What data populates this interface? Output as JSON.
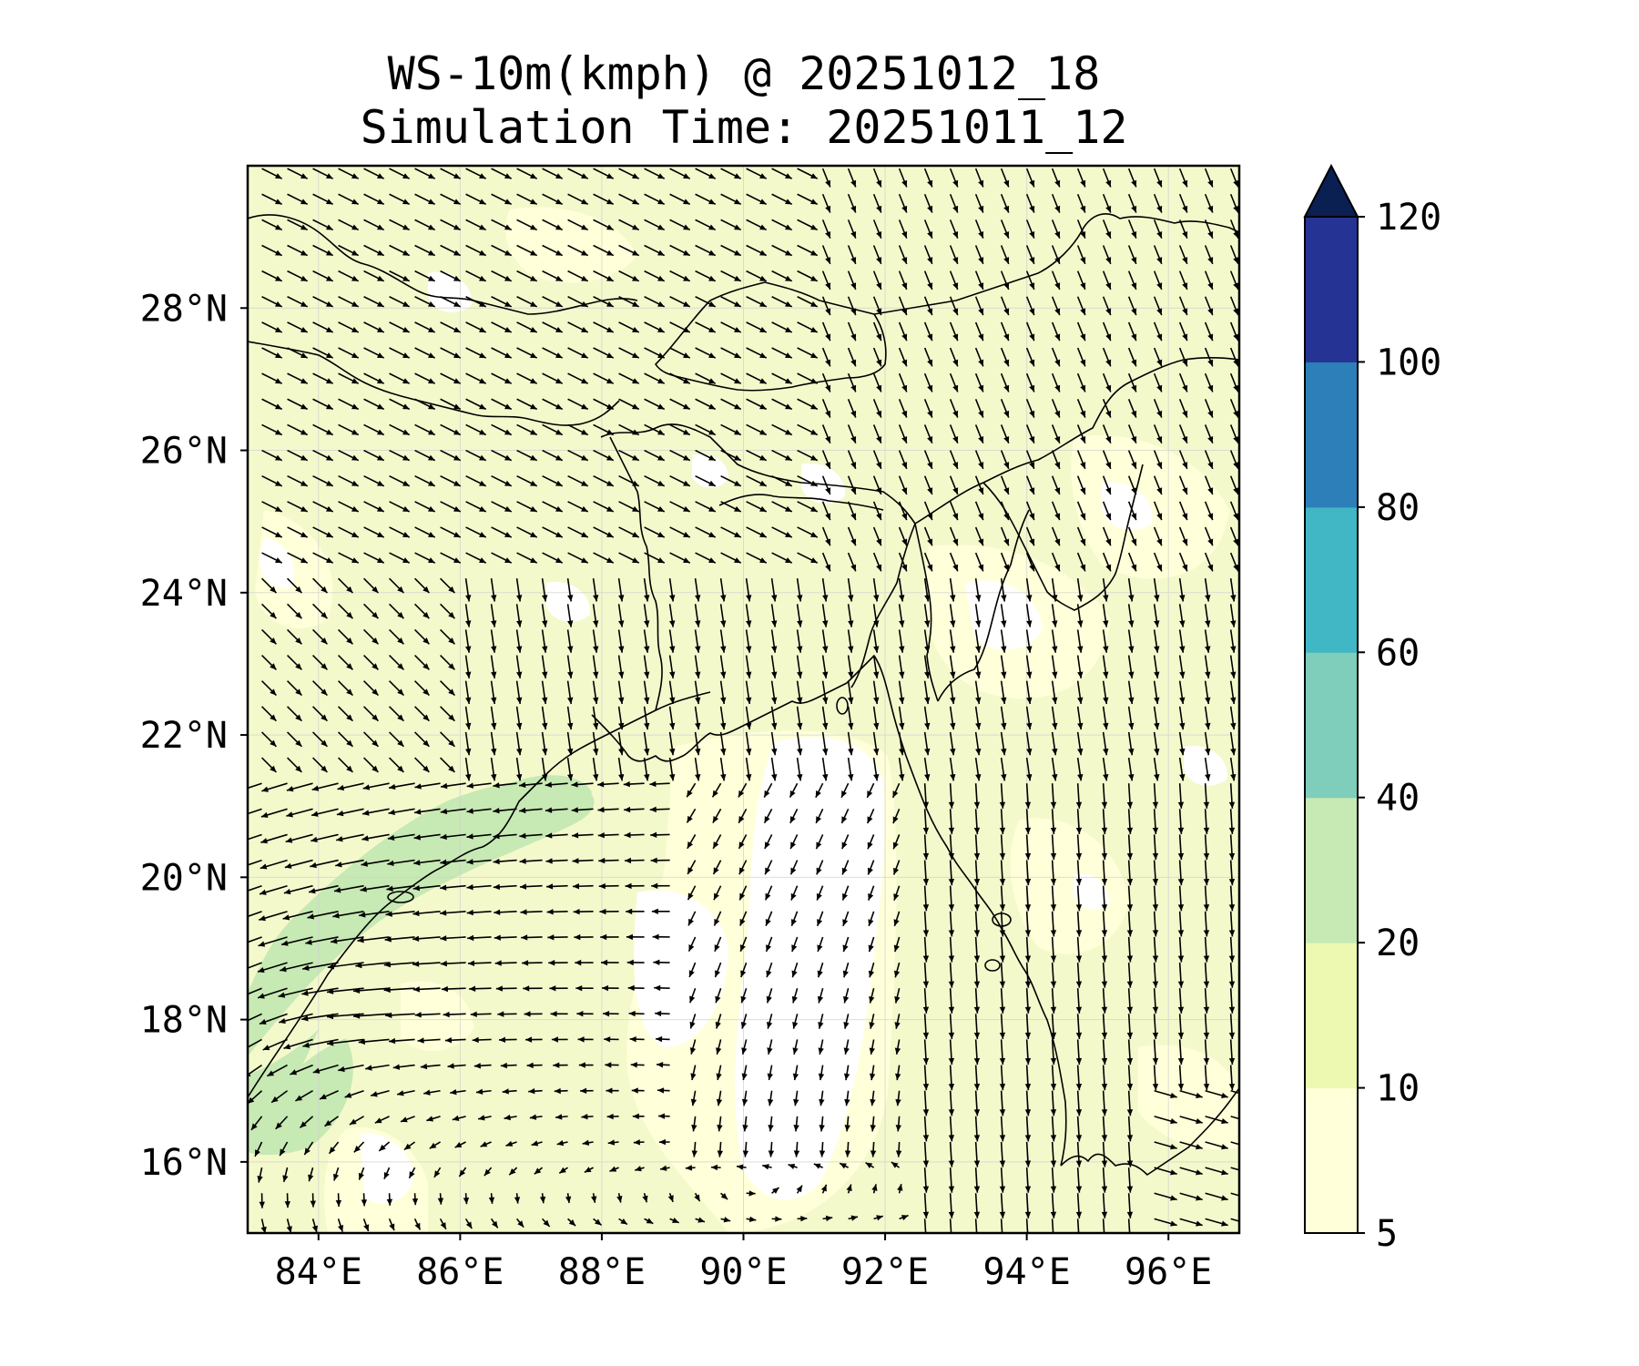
{
  "title": {
    "line1": "WS-10m(kmph) @ 20251012_18",
    "line2": "Simulation Time: 20251011_12"
  },
  "map": {
    "lon_range": [
      83,
      97
    ],
    "lat_range": [
      15,
      30
    ],
    "lon_ticks": [
      {
        "value": 84,
        "label": "84°E"
      },
      {
        "value": 86,
        "label": "86°E"
      },
      {
        "value": 88,
        "label": "88°E"
      },
      {
        "value": 90,
        "label": "90°E"
      },
      {
        "value": 92,
        "label": "92°E"
      },
      {
        "value": 94,
        "label": "94°E"
      },
      {
        "value": 96,
        "label": "96°E"
      }
    ],
    "lat_ticks": [
      {
        "value": 16,
        "label": "16°N"
      },
      {
        "value": 18,
        "label": "18°N"
      },
      {
        "value": 20,
        "label": "20°N"
      },
      {
        "value": 22,
        "label": "22°N"
      },
      {
        "value": 24,
        "label": "24°N"
      },
      {
        "value": 26,
        "label": "26°N"
      },
      {
        "value": 28,
        "label": "28°N"
      }
    ],
    "gridlines": true,
    "field": "10 m wind speed with wind vectors"
  },
  "colorbar": {
    "extend": "max",
    "levels": [
      5,
      10,
      20,
      40,
      60,
      80,
      100,
      120
    ],
    "labels": [
      "5",
      "10",
      "20",
      "40",
      "60",
      "80",
      "100",
      "120"
    ],
    "colors": [
      "#ffffd9",
      "#edf8b1",
      "#c7e9b4",
      "#7fcdbb",
      "#41b6c4",
      "#2c7fb8",
      "#253494",
      "#081d58"
    ],
    "extend_color": "#0a1f52"
  }
}
